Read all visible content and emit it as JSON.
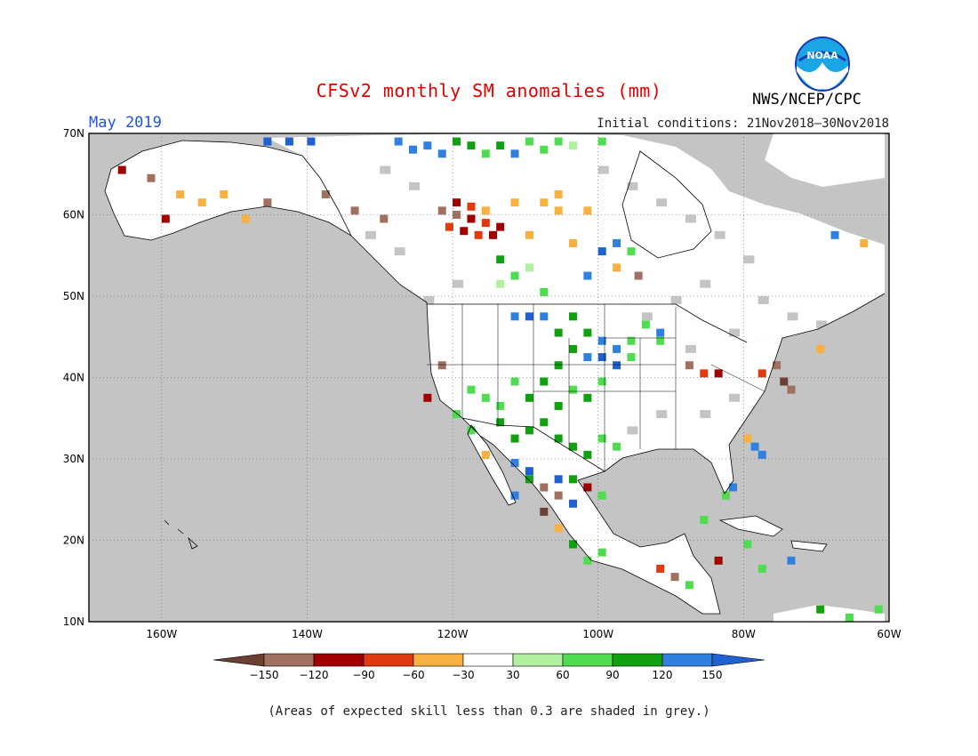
{
  "title": "CFSv2 monthly SM anomalies (mm)",
  "valid_month": "May 2019",
  "initial_conditions": "Initial conditions: 21Nov2018—30Nov2018",
  "agency": "NWS/NCEP/CPC",
  "logo_text": "NOAA",
  "footnote": "(Areas of expected skill less than 0.3 are shaded in grey.)",
  "map": {
    "lat_labels": [
      "70N",
      "60N",
      "50N",
      "40N",
      "30N",
      "20N",
      "10N"
    ],
    "lon_labels": [
      "160W",
      "140W",
      "120W",
      "100W",
      "80W",
      "60W"
    ],
    "lat_range": [
      10,
      70
    ],
    "lon_range": [
      -170,
      -60
    ],
    "grey_shading": "expected skill < 0.3"
  },
  "legend": {
    "ticks": [
      "−150",
      "−120",
      "−90",
      "−60",
      "−30",
      "30",
      "60",
      "90",
      "120",
      "150"
    ],
    "colors": [
      "#6b3f32",
      "#a07060",
      "#a00000",
      "#e03a10",
      "#f8b040",
      "#ffffff",
      "#b0f0a0",
      "#50dc50",
      "#10a010",
      "#3080e0",
      "#2060d0"
    ]
  },
  "colors": {
    "land_grey": "#c4c4c4",
    "title_red": "#e00000",
    "label_blue": "#2255dd"
  }
}
